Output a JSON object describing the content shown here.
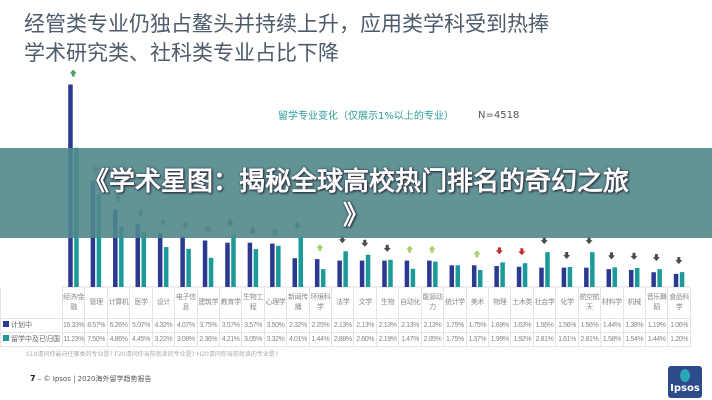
{
  "title_lines": [
    "经管类专业仍独占鳌头并持续上升，应用类学科受到热捧",
    "学术研究类、社科类专业占比下降"
  ],
  "banner": {
    "line1": "《学术星图：揭秘全球高校热门排名的奇幻之旅",
    "line2": "》"
  },
  "chart_data": {
    "type": "bar",
    "title": "留学专业变化（仅展示1%以上的专业）",
    "sample": "N=4518",
    "categories": [
      "经济/金融",
      "管理",
      "计算机",
      "医学",
      "设计",
      "电子信息",
      "建筑学",
      "教育学",
      "生物工程",
      "心理学",
      "新闻传播",
      "环境科学",
      "法学",
      "文学",
      "生物",
      "自动化",
      "能源动力",
      "统计学",
      "美术",
      "物理",
      "土木类",
      "社会学",
      "化学",
      "航空航天",
      "材料学",
      "机械",
      "音乐舞蹈",
      "食品科学"
    ],
    "series": [
      {
        "name": "计划中",
        "color": "#2b3990",
        "values": [
          16.33,
          8.57,
          6.26,
          5.07,
          4.32,
          4.07,
          3.75,
          3.57,
          3.57,
          3.5,
          2.32,
          2.25,
          2.13,
          2.13,
          2.13,
          2.13,
          2.13,
          1.75,
          1.75,
          1.69,
          1.63,
          1.56,
          1.56,
          1.56,
          1.44,
          1.38,
          1.19,
          1.06
        ]
      },
      {
        "name": "留学中及已归国",
        "color": "#1b9a9a",
        "values": [
          11.23,
          7.5,
          4.86,
          4.45,
          3.22,
          3.08,
          2.36,
          4.21,
          3.05,
          3.32,
          4.01,
          1.44,
          2.88,
          2.6,
          2.19,
          1.47,
          2.05,
          1.75,
          1.37,
          1.99,
          1.92,
          2.81,
          1.61,
          2.81,
          1.58,
          1.54,
          1.44,
          1.2
        ]
      }
    ],
    "trend_arrows": [
      "up",
      "up",
      "up",
      "up",
      "up",
      "up",
      "up",
      "down",
      "down",
      "up",
      "down",
      "up-light",
      "down",
      "down",
      "down",
      "up-light",
      "up-light",
      "none",
      "up-light",
      "down-red",
      "down-red",
      "down",
      "down",
      "down",
      "down",
      "down",
      "down",
      "down"
    ],
    "arrow_colors": {
      "up": "#4f9e63",
      "up-light": "#a6d06a",
      "down": "#4a4a4a",
      "down-red": "#c0302b"
    },
    "unit": "%"
  },
  "note": "S19请问你最向往哪类的专业是? F20请问你当前就读的专业是? H20请问你当前就读的专业是?",
  "footer": {
    "page": "7",
    "text": "– © Ipsos | 2020海外留学趋势报告"
  },
  "logo": "Ipsos"
}
